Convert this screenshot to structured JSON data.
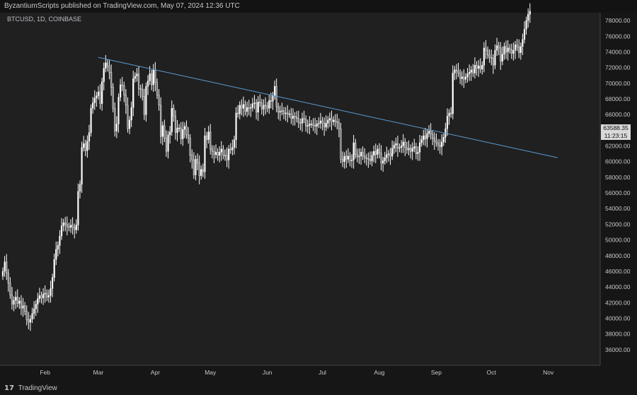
{
  "header": {
    "published_text": "ByzantiumScripts published on TradingView.com, May 07, 2024 12:36 UTC"
  },
  "symbol": {
    "label": "BTCUSD, 1D, COINBASE"
  },
  "footer": {
    "logo_text": "17",
    "brand": "TradingView"
  },
  "price_tag": {
    "price": "63588.35",
    "countdown": "11:23:15"
  },
  "colors": {
    "background": "#202020",
    "candle": "#ffffff",
    "trendline": "#5b9bd5",
    "grid": "#2a2a2a",
    "axis_text": "#c8c8c8"
  },
  "chart_data": {
    "type": "candlestick",
    "title": "",
    "xlabel": "",
    "ylabel": "",
    "ylim": [
      34000,
      79000
    ],
    "y_ticks": [
      36000,
      38000,
      40000,
      42000,
      44000,
      46000,
      48000,
      50000,
      52000,
      54000,
      56000,
      58000,
      60000,
      62000,
      64000,
      66000,
      68000,
      70000,
      72000,
      74000,
      76000,
      78000
    ],
    "x_ticks": [
      {
        "label": "Feb",
        "day": 23
      },
      {
        "label": "Mar",
        "day": 52
      },
      {
        "label": "Apr",
        "day": 83
      },
      {
        "label": "May",
        "day": 113
      },
      {
        "label": "Jun",
        "day": 144
      },
      {
        "label": "Jul",
        "day": 174
      },
      {
        "label": "Aug",
        "day": 205
      },
      {
        "label": "Sep",
        "day": 236
      },
      {
        "label": "Oct",
        "day": 266
      },
      {
        "label": "Nov",
        "day": 297
      }
    ],
    "closes": [
      46000,
      47200,
      45800,
      44500,
      43000,
      41800,
      42300,
      42700,
      41900,
      42200,
      41300,
      41600,
      40900,
      39800,
      39500,
      39900,
      40600,
      41200,
      41800,
      42500,
      42900,
      42600,
      43100,
      43200,
      42700,
      42900,
      43800,
      45200,
      47500,
      48800,
      49300,
      50500,
      51800,
      52200,
      52000,
      51700,
      51600,
      51900,
      51600,
      51300,
      51900,
      56200,
      57100,
      61800,
      62300,
      61400,
      62600,
      63700,
      66800,
      67500,
      68100,
      68400,
      68900,
      67400,
      70200,
      71900,
      72600,
      72200,
      71400,
      69500,
      66800,
      63900,
      64800,
      68200,
      69800,
      69700,
      68500,
      67200,
      64200,
      65300,
      66900,
      70600,
      70900,
      71200,
      69300,
      69200,
      68300,
      66000,
      69600,
      70300,
      71200,
      69800,
      71700,
      70100,
      68500,
      67200,
      63200,
      64600,
      63000,
      61300,
      63400,
      63800,
      66800,
      65800,
      63700,
      64300,
      64300,
      62900,
      64100,
      64500,
      63400,
      63000,
      60800,
      60200,
      58300,
      60300,
      59800,
      58200,
      59000,
      58700,
      63300,
      62800,
      63800,
      61600,
      61300,
      60900,
      61200,
      60800,
      61200,
      61600,
      60800,
      60800,
      60200,
      61600,
      61500,
      61800,
      62800,
      66200,
      66100,
      67200,
      66800,
      67300,
      66400,
      66900,
      66800,
      66900,
      67400,
      67500,
      66300,
      67600,
      67500,
      66700,
      67200,
      67100,
      66800,
      67800,
      67700,
      68400,
      69600,
      67000,
      66300,
      66400,
      66500,
      66100,
      66200,
      66100,
      66100,
      65500,
      65800,
      65700,
      65500,
      65000,
      64900,
      65500,
      65400,
      64500,
      64600,
      64800,
      64800,
      64600,
      64500,
      64800,
      64900,
      65200,
      64900,
      64400,
      64900,
      65300,
      65500,
      65100,
      65300,
      65100,
      65000,
      64200,
      60300,
      60000,
      60700,
      60300,
      60700,
      60100,
      60200,
      62400,
      60900,
      60600,
      60700,
      61200,
      60700,
      60500,
      60400,
      60300,
      60100,
      60800,
      61300,
      60900,
      61600,
      61100,
      59800,
      60100,
      60500,
      60900,
      61000,
      60700,
      61700,
      62100,
      62300,
      61700,
      61800,
      62000,
      62500,
      61800,
      61500,
      61700,
      61300,
      61700,
      61900,
      61000,
      61200,
      62400,
      62800,
      63300,
      62900,
      63600,
      63900,
      63500,
      63000,
      62600,
      62400,
      62100,
      61900,
      62500,
      63100,
      64200,
      65800,
      66200,
      66100,
      71300,
      71700,
      71600,
      71300,
      70600,
      70800,
      70500,
      70800,
      71200,
      71400,
      71700,
      71300,
      72300,
      71900,
      72200,
      71800,
      72300,
      74500,
      74200,
      73600,
      73300,
      73200,
      72300,
      74200,
      74800,
      74500,
      72800,
      73700,
      74700,
      74000,
      74500,
      74300,
      73800,
      74200,
      74900,
      74600,
      73900,
      74700,
      75600,
      76900,
      78000,
      78800,
      79200
    ]
  }
}
